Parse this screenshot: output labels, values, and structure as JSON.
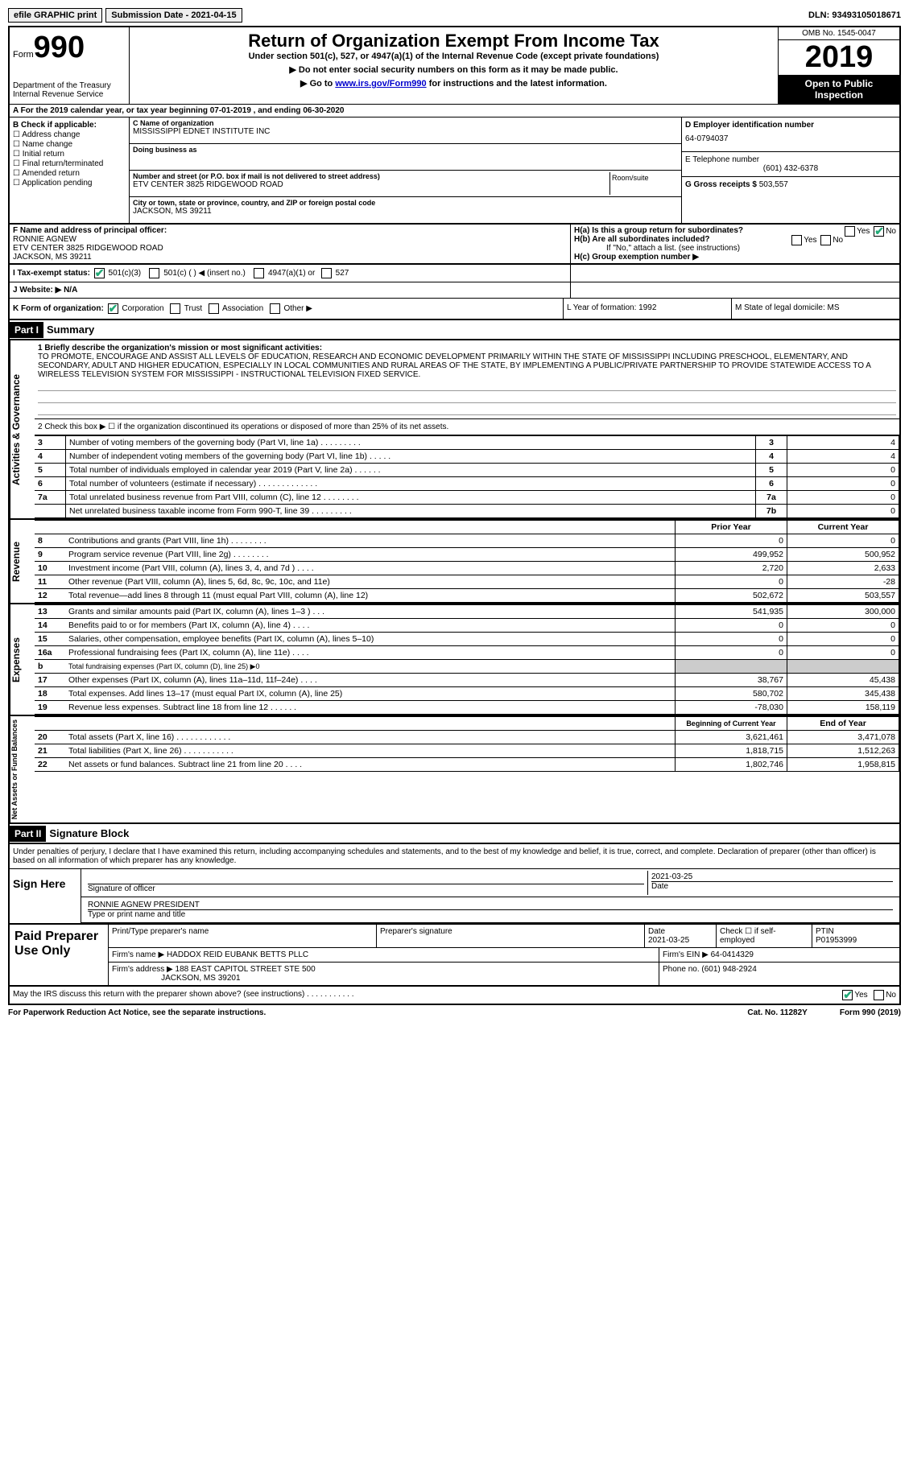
{
  "topbar": {
    "efile": "efile GRAPHIC print",
    "submission": "Submission Date - 2021-04-15",
    "dln": "DLN: 93493105018671"
  },
  "header": {
    "form_label": "Form",
    "form_num": "990",
    "dept": "Department of the Treasury\nInternal Revenue Service",
    "title": "Return of Organization Exempt From Income Tax",
    "subtitle": "Under section 501(c), 527, or 4947(a)(1) of the Internal Revenue Code (except private foundations)",
    "instr1": "▶ Do not enter social security numbers on this form as it may be made public.",
    "instr2_pre": "▶ Go to ",
    "instr2_link": "www.irs.gov/Form990",
    "instr2_post": " for instructions and the latest information.",
    "omb": "OMB No. 1545-0047",
    "year": "2019",
    "open": "Open to Public Inspection"
  },
  "line_a": "A For the 2019 calendar year, or tax year beginning 07-01-2019    , and ending 06-30-2020",
  "section_b": {
    "label": "B Check if applicable:",
    "opts": [
      "Address change",
      "Name change",
      "Initial return",
      "Final return/terminated",
      "Amended return",
      "Application pending"
    ]
  },
  "section_c": {
    "name_label": "C Name of organization",
    "name": "MISSISSIPPI EDNET INSTITUTE INC",
    "dba_label": "Doing business as",
    "addr_label": "Number and street (or P.O. box if mail is not delivered to street address)",
    "room_label": "Room/suite",
    "addr": "ETV CENTER 3825 RIDGEWOOD ROAD",
    "city_label": "City or town, state or province, country, and ZIP or foreign postal code",
    "city": "JACKSON, MS  39211"
  },
  "section_d": {
    "ein_label": "D Employer identification number",
    "ein": "64-0794037",
    "tel_label": "E Telephone number",
    "tel": "(601) 432-6378",
    "gross_label": "G Gross receipts $",
    "gross": "503,557"
  },
  "section_f": {
    "label": "F  Name and address of principal officer:",
    "name": "RONNIE AGNEW",
    "addr1": "ETV CENTER 3825 RIDGEWOOD ROAD",
    "addr2": "JACKSON, MS  39211"
  },
  "section_h": {
    "ha": "H(a)  Is this a group return for subordinates?",
    "hb": "H(b)  Are all subordinates included?",
    "hb_note": "If \"No,\" attach a list. (see instructions)",
    "hc": "H(c)  Group exemption number ▶"
  },
  "line_i": {
    "label": "I   Tax-exempt status:",
    "opts": [
      "501(c)(3)",
      "501(c) (  ) ◀ (insert no.)",
      "4947(a)(1) or",
      "527"
    ]
  },
  "line_j": "J  Website: ▶  N/A",
  "line_k": {
    "label": "K Form of organization:",
    "opts": [
      "Corporation",
      "Trust",
      "Association",
      "Other ▶"
    ],
    "l": "L Year of formation: 1992",
    "m": "M State of legal domicile: MS"
  },
  "part1": {
    "header": "Part I",
    "title": "Summary",
    "line1_label": "1  Briefly describe the organization's mission or most significant activities:",
    "mission": "TO PROMOTE, ENCOURAGE AND ASSIST ALL LEVELS OF EDUCATION, RESEARCH AND ECONOMIC DEVELOPMENT PRIMARILY WITHIN THE STATE OF MISSISSIPPI INCLUDING PRESCHOOL, ELEMENTARY, AND SECONDARY, ADULT AND HIGHER EDUCATION, ESPECIALLY IN LOCAL COMMUNITIES AND RURAL AREAS OF THE STATE, BY IMPLEMENTING A PUBLIC/PRIVATE PARTNERSHIP TO PROVIDE STATEWIDE ACCESS TO A WIRELESS TELEVISION SYSTEM FOR MISSISSIPPI - INSTRUCTIONAL TELEVISION FIXED SERVICE.",
    "vert_ag": "Activities & Governance",
    "line2": "2    Check this box ▶ ☐  if the organization discontinued its operations or disposed of more than 25% of its net assets.",
    "rows_ag": [
      {
        "n": "3",
        "label": "Number of voting members of the governing body (Part VI, line 1a)  .  .  .  .  .  .  .  .  .",
        "box": "3",
        "val": "4"
      },
      {
        "n": "4",
        "label": "Number of independent voting members of the governing body (Part VI, line 1b)  .  .  .  .  .",
        "box": "4",
        "val": "4"
      },
      {
        "n": "5",
        "label": "Total number of individuals employed in calendar year 2019 (Part V, line 2a)  .  .  .  .  .  .",
        "box": "5",
        "val": "0"
      },
      {
        "n": "6",
        "label": "Total number of volunteers (estimate if necessary)  .  .  .  .  .  .  .  .  .  .  .  .  .",
        "box": "6",
        "val": "0"
      },
      {
        "n": "7a",
        "label": "Total unrelated business revenue from Part VIII, column (C), line 12  .  .  .  .  .  .  .  .",
        "box": "7a",
        "val": "0"
      },
      {
        "n": "",
        "label": "Net unrelated business taxable income from Form 990-T, line 39  .  .  .  .  .  .  .  .  .",
        "box": "7b",
        "val": "0"
      }
    ],
    "vert_rev": "Revenue",
    "prior_year": "Prior Year",
    "current_year": "Current Year",
    "rows_rev": [
      {
        "n": "8",
        "label": "Contributions and grants (Part VIII, line 1h)  .  .  .  .  .  .  .  .",
        "prior": "0",
        "curr": "0"
      },
      {
        "n": "9",
        "label": "Program service revenue (Part VIII, line 2g)  .  .  .  .  .  .  .  .",
        "prior": "499,952",
        "curr": "500,952"
      },
      {
        "n": "10",
        "label": "Investment income (Part VIII, column (A), lines 3, 4, and 7d )  .  .  .  .",
        "prior": "2,720",
        "curr": "2,633"
      },
      {
        "n": "11",
        "label": "Other revenue (Part VIII, column (A), lines 5, 6d, 8c, 9c, 10c, and 11e)",
        "prior": "0",
        "curr": "-28"
      },
      {
        "n": "12",
        "label": "Total revenue—add lines 8 through 11 (must equal Part VIII, column (A), line 12)",
        "prior": "502,672",
        "curr": "503,557"
      }
    ],
    "vert_exp": "Expenses",
    "rows_exp": [
      {
        "n": "13",
        "label": "Grants and similar amounts paid (Part IX, column (A), lines 1–3 )  .  .  .",
        "prior": "541,935",
        "curr": "300,000"
      },
      {
        "n": "14",
        "label": "Benefits paid to or for members (Part IX, column (A), line 4)  .  .  .  .",
        "prior": "0",
        "curr": "0"
      },
      {
        "n": "15",
        "label": "Salaries, other compensation, employee benefits (Part IX, column (A), lines 5–10)",
        "prior": "0",
        "curr": "0"
      },
      {
        "n": "16a",
        "label": "Professional fundraising fees (Part IX, column (A), line 11e)  .  .  .  .",
        "prior": "0",
        "curr": "0"
      },
      {
        "n": "b",
        "label": "Total fundraising expenses (Part IX, column (D), line 25) ▶0",
        "prior": "",
        "curr": "",
        "shade": true
      },
      {
        "n": "17",
        "label": "Other expenses (Part IX, column (A), lines 11a–11d, 11f–24e)  .  .  .  .",
        "prior": "38,767",
        "curr": "45,438"
      },
      {
        "n": "18",
        "label": "Total expenses. Add lines 13–17 (must equal Part IX, column (A), line 25)",
        "prior": "580,702",
        "curr": "345,438"
      },
      {
        "n": "19",
        "label": "Revenue less expenses. Subtract line 18 from line 12  .  .  .  .  .  .",
        "prior": "-78,030",
        "curr": "158,119"
      }
    ],
    "vert_net": "Net Assets or Fund Balances",
    "begin_year": "Beginning of Current Year",
    "end_year": "End of Year",
    "rows_net": [
      {
        "n": "20",
        "label": "Total assets (Part X, line 16)  .  .  .  .  .  .  .  .  .  .  .  .",
        "prior": "3,621,461",
        "curr": "3,471,078"
      },
      {
        "n": "21",
        "label": "Total liabilities (Part X, line 26)  .  .  .  .  .  .  .  .  .  .  .",
        "prior": "1,818,715",
        "curr": "1,512,263"
      },
      {
        "n": "22",
        "label": "Net assets or fund balances. Subtract line 21 from line 20  .  .  .  .",
        "prior": "1,802,746",
        "curr": "1,958,815"
      }
    ]
  },
  "part2": {
    "header": "Part II",
    "title": "Signature Block",
    "decl": "Under penalties of perjury, I declare that I have examined this return, including accompanying schedules and statements, and to the best of my knowledge and belief, it is true, correct, and complete. Declaration of preparer (other than officer) is based on all information of which preparer has any knowledge.",
    "sign_here": "Sign Here",
    "sig_officer": "Signature of officer",
    "sig_date": "2021-03-25",
    "date_label": "Date",
    "name_title": "RONNIE AGNEW  PRESIDENT",
    "type_name": "Type or print name and title",
    "paid_prep": "Paid Preparer Use Only",
    "prep_name_label": "Print/Type preparer's name",
    "prep_sig_label": "Preparer's signature",
    "prep_date_label": "Date",
    "prep_date": "2021-03-25",
    "check_self": "Check ☐ if self-employed",
    "ptin_label": "PTIN",
    "ptin": "P01953999",
    "firm_name_label": "Firm's name    ▶",
    "firm_name": "HADDOX REID EUBANK BETTS PLLC",
    "firm_ein_label": "Firm's EIN ▶",
    "firm_ein": "64-0414329",
    "firm_addr_label": "Firm's address ▶",
    "firm_addr": "188 EAST CAPITOL STREET STE 500",
    "firm_city": "JACKSON, MS  39201",
    "phone_label": "Phone no.",
    "phone": "(601) 948-2924",
    "discuss": "May the IRS discuss this return with the preparer shown above? (see instructions)  .  .  .  .  .  .  .  .  .  .  .",
    "yes": "Yes",
    "no": "No"
  },
  "footer": {
    "paperwork": "For Paperwork Reduction Act Notice, see the separate instructions.",
    "cat": "Cat. No. 11282Y",
    "form": "Form 990 (2019)"
  }
}
